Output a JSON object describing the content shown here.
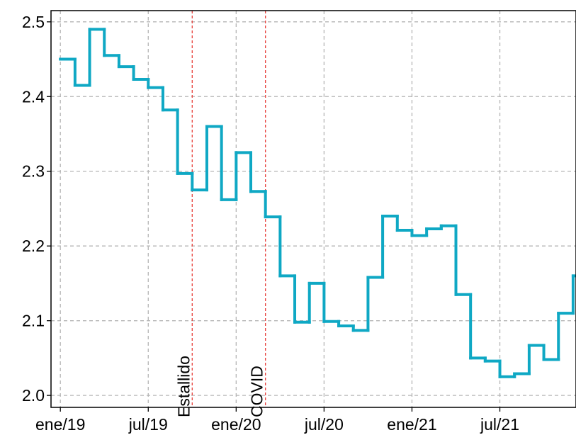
{
  "chart_data": {
    "type": "step",
    "x": [
      "2019-01",
      "2019-02",
      "2019-03",
      "2019-04",
      "2019-05",
      "2019-06",
      "2019-07",
      "2019-08",
      "2019-09",
      "2019-10",
      "2019-11",
      "2019-12",
      "2020-01",
      "2020-02",
      "2020-03",
      "2020-04",
      "2020-05",
      "2020-06",
      "2020-07",
      "2020-08",
      "2020-09",
      "2020-10",
      "2020-11",
      "2020-12",
      "2021-01",
      "2021-02",
      "2021-03",
      "2021-04",
      "2021-05",
      "2021-06",
      "2021-07",
      "2021-08",
      "2021-09",
      "2021-10",
      "2021-11",
      "2021-12"
    ],
    "series": [
      {
        "color": "#0fa8c4",
        "values": [
          2.45,
          2.415,
          2.49,
          2.455,
          2.44,
          2.423,
          2.412,
          2.382,
          2.297,
          2.275,
          2.36,
          2.262,
          2.325,
          2.273,
          2.239,
          2.16,
          2.098,
          2.15,
          2.099,
          2.093,
          2.087,
          2.158,
          2.24,
          2.221,
          2.214,
          2.223,
          2.227,
          2.135,
          2.05,
          2.046,
          2.025,
          2.029,
          2.067,
          2.048,
          2.11,
          2.16
        ]
      }
    ],
    "xlim": [
      "2018-12-12",
      "2021-12-07"
    ],
    "ylim": [
      1.984,
      2.515
    ],
    "xticks": [
      {
        "value": "2019-01",
        "label": "ene/19"
      },
      {
        "value": "2019-07",
        "label": "jul/19"
      },
      {
        "value": "2020-01",
        "label": "ene/20"
      },
      {
        "value": "2020-07",
        "label": "jul/20"
      },
      {
        "value": "2021-01",
        "label": "ene/21"
      },
      {
        "value": "2021-07",
        "label": "jul/21"
      }
    ],
    "yticks": [
      {
        "value": 2,
        "label": "2.0"
      },
      2.1,
      2.2,
      2.3,
      2.4,
      2.5
    ],
    "grid": true,
    "annotations": [
      {
        "x": "2019-10",
        "text": "Estallido",
        "color": "#e8413c"
      },
      {
        "x": "2020-03",
        "text": "COVID",
        "color": "#e8413c"
      }
    ]
  }
}
